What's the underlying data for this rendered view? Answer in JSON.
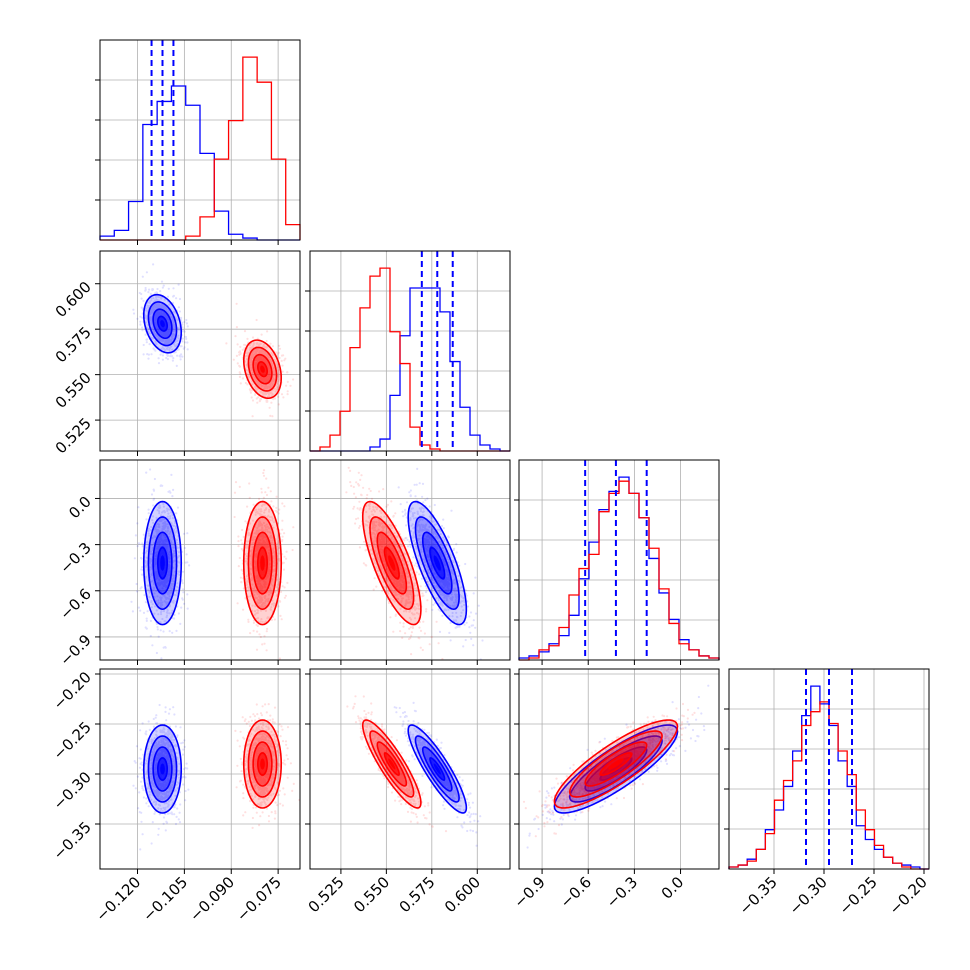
{
  "chart_data": {
    "type": "corner",
    "grid": true,
    "colors": {
      "blue": "#0000ff",
      "red": "#ff0000"
    },
    "series": [
      {
        "color": "#0000ff",
        "means": [
          -0.112,
          0.578,
          -0.42,
          -0.295
        ],
        "sds": [
          0.003,
          0.008,
          0.2,
          0.022
        ]
      },
      {
        "color": "#ff0000",
        "means": [
          -0.08,
          0.553,
          -0.42,
          -0.29
        ],
        "sds": [
          0.003,
          0.008,
          0.2,
          0.022
        ]
      }
    ],
    "correlations": [
      {
        "i": 1,
        "j": 0,
        "values": [
          -0.3,
          -0.3
        ]
      },
      {
        "i": 2,
        "j": 0,
        "values": [
          0.0,
          0.0
        ]
      },
      {
        "i": 2,
        "j": 1,
        "values": [
          -0.75,
          -0.75
        ]
      },
      {
        "i": 3,
        "j": 0,
        "values": [
          0.0,
          0.0
        ]
      },
      {
        "i": 3,
        "j": 1,
        "values": [
          -0.88,
          -0.88
        ]
      },
      {
        "i": 3,
        "j": 2,
        "values": [
          0.85,
          0.85
        ]
      }
    ],
    "quantile_lines": [
      [
        -0.1155,
        -0.112,
        -0.1085
      ],
      [
        0.5695,
        0.578,
        0.5865
      ],
      [
        -0.62,
        -0.42,
        -0.22
      ],
      [
        -0.318,
        -0.295,
        -0.272
      ]
    ],
    "ranges": [
      [
        -0.132,
        -0.068
      ],
      [
        0.508,
        0.618
      ],
      [
        -1.05,
        0.25
      ],
      [
        -0.395,
        -0.195
      ]
    ],
    "axes": [
      {
        "ticks": [
          -0.12,
          -0.105,
          -0.09,
          -0.075
        ],
        "labels": [
          "−0.120",
          "−0.105",
          "−0.090",
          "−0.075"
        ]
      },
      {
        "ticks": [
          0.525,
          0.55,
          0.575,
          0.6
        ],
        "labels": [
          "0.525",
          "0.550",
          "0.575",
          "0.600"
        ]
      },
      {
        "ticks": [
          -0.9,
          -0.6,
          -0.3,
          0.0
        ],
        "labels": [
          "−0.9",
          "−0.6",
          "−0.3",
          "0.0"
        ]
      },
      {
        "ticks": [
          -0.35,
          -0.3,
          -0.25,
          -0.2
        ],
        "labels": [
          "−0.35",
          "−0.30",
          "−0.25",
          "−0.20"
        ]
      }
    ],
    "histograms": [
      {
        "bins": 14,
        "blue": [
          0.02,
          0.05,
          0.2,
          0.6,
          0.72,
          0.8,
          0.7,
          0.45,
          0.15,
          0.03,
          0.01,
          0,
          0,
          0
        ],
        "red": [
          0,
          0,
          0,
          0,
          0,
          0,
          0.02,
          0.12,
          0.42,
          0.62,
          0.95,
          0.82,
          0.42,
          0.08
        ]
      },
      {
        "bins": 20,
        "blue": [
          0,
          0,
          0,
          0,
          0,
          0,
          0.02,
          0.06,
          0.28,
          0.58,
          0.82,
          0.82,
          0.82,
          0.7,
          0.45,
          0.22,
          0.08,
          0.03,
          0.01,
          0
        ],
        "red": [
          0,
          0.02,
          0.08,
          0.2,
          0.52,
          0.72,
          0.88,
          0.92,
          0.6,
          0.44,
          0.12,
          0.03,
          0.01,
          0,
          0,
          0,
          0,
          0,
          0,
          0
        ]
      },
      {
        "bins": 20,
        "blue": [
          0.01,
          0.02,
          0.04,
          0.08,
          0.12,
          0.22,
          0.4,
          0.58,
          0.74,
          0.83,
          0.9,
          0.82,
          0.7,
          0.5,
          0.33,
          0.2,
          0.1,
          0.05,
          0.02,
          0.01
        ],
        "red": [
          0,
          0.01,
          0.05,
          0.07,
          0.16,
          0.32,
          0.45,
          0.52,
          0.73,
          0.82,
          0.88,
          0.82,
          0.7,
          0.55,
          0.35,
          0.18,
          0.08,
          0.05,
          0.02,
          0.01
        ]
      },
      {
        "bins": 22,
        "blue": [
          0.01,
          0.02,
          0.05,
          0.1,
          0.2,
          0.3,
          0.42,
          0.6,
          0.78,
          0.93,
          0.84,
          0.73,
          0.55,
          0.42,
          0.22,
          0.15,
          0.1,
          0.06,
          0.03,
          0.02,
          0.01,
          0
        ],
        "red": [
          0.01,
          0.02,
          0.04,
          0.1,
          0.18,
          0.35,
          0.45,
          0.55,
          0.73,
          0.8,
          0.85,
          0.74,
          0.6,
          0.48,
          0.3,
          0.2,
          0.12,
          0.06,
          0.03,
          0.01,
          0,
          0
        ]
      }
    ]
  }
}
